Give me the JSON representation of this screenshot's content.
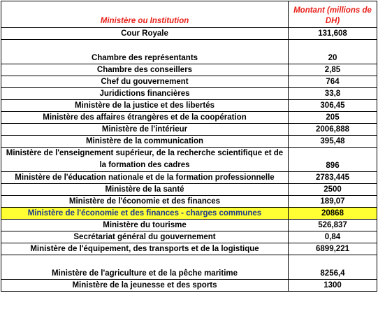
{
  "header": {
    "name": "Ministère ou Institution",
    "amount": "Montant (millions de DH)"
  },
  "rows": [
    {
      "name": "Cour Royale",
      "amount": "131,608"
    },
    {
      "name": "Chambre des représentants",
      "amount": "20"
    },
    {
      "name": "Chambre des conseillers",
      "amount": "2,85"
    },
    {
      "name": "Chef du gouvernement",
      "amount": "764"
    },
    {
      "name": "Juridictions financières",
      "amount": "33,8"
    },
    {
      "name": "Ministère de la justice et des libertés",
      "amount": "306,45"
    },
    {
      "name": "Ministère des affaires étrangères et de la coopération",
      "amount": "205"
    },
    {
      "name": "Ministère de l'intérieur",
      "amount": "2006,888"
    },
    {
      "name": "Ministère de la communication",
      "amount": "395,48"
    },
    {
      "name": "Ministère de l'enseignement supérieur, de la recherche scientifique et de la formation des cadres",
      "amount": "896"
    },
    {
      "name": "Ministère de l'éducation nationale et de la formation professionnelle",
      "amount": "2783,445"
    },
    {
      "name": "Ministère de la santé",
      "amount": "2500"
    },
    {
      "name": "Ministère de l'économie et des finances",
      "amount": "189,07"
    },
    {
      "name": "Ministère de l'économie et des finances - charges communes",
      "amount": "20868"
    },
    {
      "name": "Ministère du tourisme",
      "amount": "526,837"
    },
    {
      "name": "Secrétariat général du gouvernement",
      "amount": "0,84"
    },
    {
      "name": "Ministère de l'équipement, des transports et de la logistique",
      "amount": "6899,221"
    },
    {
      "name": "Ministère de l'agriculture et de la pêche maritime",
      "amount": "8256,4"
    },
    {
      "name": "Ministère de la jeunesse et des sports",
      "amount": "1300"
    }
  ],
  "colors": {
    "header_text": "#e8201a",
    "highlight_bg": "#ffff33",
    "highlight_text": "#1f3a8a"
  }
}
